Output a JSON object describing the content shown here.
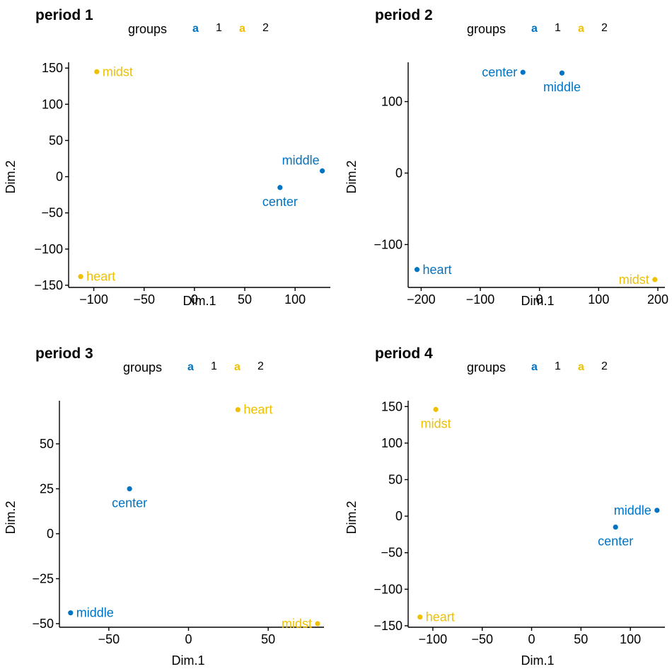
{
  "chart_data": [
    {
      "type": "scatter",
      "title": "period 1",
      "legend": {
        "title": "groups",
        "key_glyph": "a",
        "entries": [
          {
            "label": "1",
            "color": "#0073C2"
          },
          {
            "label": "2",
            "color": "#EFC000"
          }
        ],
        "placement": "top"
      },
      "xlabel": "Dim.1",
      "ylabel": "Dim.2",
      "xlim": [
        -125,
        135
      ],
      "ylim": [
        -153,
        158
      ],
      "xticks": [
        -100,
        -50,
        0,
        50,
        100
      ],
      "yticks": [
        -150,
        -100,
        -50,
        0,
        50,
        100,
        150
      ],
      "xtick_labels": [
        "−100",
        "−50",
        "0",
        "50",
        "100"
      ],
      "ytick_labels": [
        "−150",
        "−100",
        "−50",
        "0",
        "50",
        "100",
        "150"
      ],
      "points": [
        {
          "label": "midst",
          "x": -97,
          "y": 145,
          "group": "2",
          "label_pos": "right"
        },
        {
          "label": "middle",
          "x": 127,
          "y": 8,
          "group": "1",
          "label_pos": "above-left"
        },
        {
          "label": "center",
          "x": 85,
          "y": -15,
          "group": "1",
          "label_pos": "below"
        },
        {
          "label": "heart",
          "x": -113,
          "y": -138,
          "group": "2",
          "label_pos": "right"
        }
      ]
    },
    {
      "type": "scatter",
      "title": "period 2",
      "legend": {
        "title": "groups",
        "key_glyph": "a",
        "entries": [
          {
            "label": "1",
            "color": "#0073C2"
          },
          {
            "label": "2",
            "color": "#EFC000"
          }
        ],
        "placement": "top"
      },
      "xlabel": "Dim.1",
      "ylabel": "Dim.2",
      "xlim": [
        -222,
        212
      ],
      "ylim": [
        -160,
        155
      ],
      "xticks": [
        -200,
        -100,
        0,
        100,
        200
      ],
      "yticks": [
        -100,
        0,
        100
      ],
      "xtick_labels": [
        "−200",
        "−100",
        "0",
        "100",
        "200"
      ],
      "ytick_labels": [
        "−100",
        "0",
        "100"
      ],
      "points": [
        {
          "label": "center",
          "x": -28,
          "y": 141,
          "group": "1",
          "label_pos": "left"
        },
        {
          "label": "middle",
          "x": 38,
          "y": 140,
          "group": "1",
          "label_pos": "below"
        },
        {
          "label": "heart",
          "x": -207,
          "y": -135,
          "group": "1",
          "label_pos": "right"
        },
        {
          "label": "midst",
          "x": 195,
          "y": -149,
          "group": "2",
          "label_pos": "left"
        }
      ]
    },
    {
      "type": "scatter",
      "title": "period 3",
      "legend": {
        "title": "groups",
        "key_glyph": "a",
        "entries": [
          {
            "label": "1",
            "color": "#0073C2"
          },
          {
            "label": "2",
            "color": "#EFC000"
          }
        ],
        "placement": "top"
      },
      "xlabel": "Dim.1",
      "ylabel": "Dim.2",
      "xlim": [
        -81,
        85
      ],
      "ylim": [
        -52,
        74
      ],
      "xticks": [
        -50,
        0,
        50
      ],
      "yticks": [
        -50,
        -25,
        0,
        25,
        50
      ],
      "xtick_labels": [
        "−50",
        "0",
        "50"
      ],
      "ytick_labels": [
        "−50",
        "−25",
        "0",
        "25",
        "50"
      ],
      "points": [
        {
          "label": "heart",
          "x": 31,
          "y": 69,
          "group": "2",
          "label_pos": "right"
        },
        {
          "label": "center",
          "x": -37,
          "y": 25,
          "group": "1",
          "label_pos": "below"
        },
        {
          "label": "middle",
          "x": -74,
          "y": -44,
          "group": "1",
          "label_pos": "right"
        },
        {
          "label": "midst",
          "x": 81,
          "y": -50,
          "group": "2",
          "label_pos": "left"
        }
      ]
    },
    {
      "type": "scatter",
      "title": "period 4",
      "legend": {
        "title": "groups",
        "key_glyph": "a",
        "entries": [
          {
            "label": "1",
            "color": "#0073C2"
          },
          {
            "label": "2",
            "color": "#EFC000"
          }
        ],
        "placement": "top"
      },
      "xlabel": "Dim.1",
      "ylabel": "Dim.2",
      "xlim": [
        -125,
        135
      ],
      "ylim": [
        -152,
        158
      ],
      "xticks": [
        -100,
        -50,
        0,
        50,
        100
      ],
      "yticks": [
        -150,
        -100,
        -50,
        0,
        50,
        100,
        150
      ],
      "xtick_labels": [
        "−100",
        "−50",
        "0",
        "50",
        "100"
      ],
      "ytick_labels": [
        "−150",
        "−100",
        "−50",
        "0",
        "50",
        "100",
        "150"
      ],
      "points": [
        {
          "label": "midst",
          "x": -97,
          "y": 146,
          "group": "2",
          "label_pos": "below"
        },
        {
          "label": "middle",
          "x": 127,
          "y": 8,
          "group": "1",
          "label_pos": "left"
        },
        {
          "label": "center",
          "x": 85,
          "y": -15,
          "group": "1",
          "label_pos": "below"
        },
        {
          "label": "heart",
          "x": -113,
          "y": -138,
          "group": "2",
          "label_pos": "right"
        }
      ]
    }
  ]
}
